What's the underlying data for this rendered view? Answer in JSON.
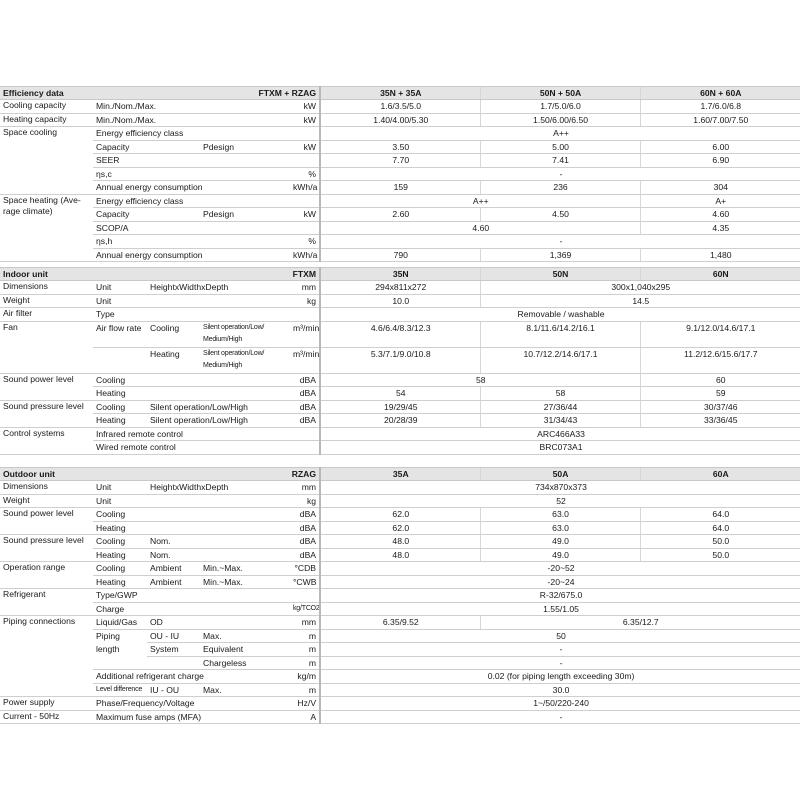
{
  "sections": [
    {
      "header": [
        "Efficiency data",
        "FTXM + RZAG",
        "35N + 35A",
        "50N + 50A",
        "60N + 60A"
      ],
      "rows": [
        {
          "group": {
            "t": "Cooling capacity"
          },
          "sub": [
            "Min./Nom./Max."
          ],
          "unit": "kW",
          "values": [
            "1.6/3.5/5.0",
            "1.7/5.0/6.0",
            "1.7/6.0/6.8"
          ]
        },
        {
          "group": {
            "t": "Heating capacity"
          },
          "sub": [
            "Min./Nom./Max."
          ],
          "unit": "kW",
          "values": [
            "1.40/4.00/5.30",
            "1.50/6.00/6.50",
            "1.60/7.00/7.50"
          ]
        },
        {
          "group": {
            "t": "Space cooling",
            "rs": 5
          },
          "sub": [
            "Energy efficiency class"
          ],
          "unit": "",
          "values": [
            {
              "v": "A++",
              "span": 3
            }
          ]
        },
        {
          "sub": [
            "Capacity",
            "",
            "Pdesign"
          ],
          "unit": "kW",
          "values": [
            "3.50",
            "5.00",
            "6.00"
          ]
        },
        {
          "sub": [
            "SEER"
          ],
          "unit": "",
          "values": [
            "7.70",
            "7.41",
            "6.90"
          ]
        },
        {
          "sub": [
            "ηs,c"
          ],
          "unit": "%",
          "values": [
            {
              "v": "-",
              "span": 3
            }
          ]
        },
        {
          "sub": [
            "Annual energy consumption"
          ],
          "unit": "kWh/a",
          "values": [
            "159",
            "236",
            "304"
          ]
        },
        {
          "group": {
            "t": "Space heating (Ave-rage climate)",
            "rs": 5
          },
          "sub": [
            "Energy efficiency class"
          ],
          "unit": "",
          "values": [
            {
              "v": "A++",
              "span": 2
            },
            "A+"
          ]
        },
        {
          "sub": [
            "Capacity",
            "",
            "Pdesign"
          ],
          "unit": "kW",
          "values": [
            "2.60",
            "4.50",
            "4.60"
          ]
        },
        {
          "sub": [
            "SCOP/A"
          ],
          "unit": "",
          "values": [
            {
              "v": "4.60",
              "span": 2
            },
            "4.35"
          ]
        },
        {
          "sub": [
            "ηs,h"
          ],
          "unit": "%",
          "values": [
            {
              "v": "-",
              "span": 3
            }
          ]
        },
        {
          "sub": [
            "Annual energy consumption"
          ],
          "unit": "kWh/a",
          "values": [
            "790",
            "1,369",
            "1,480"
          ]
        }
      ]
    },
    {
      "header": [
        "Indoor unit",
        "FTXM",
        "35N",
        "50N",
        "60N"
      ],
      "rows": [
        {
          "group": {
            "t": "Dimensions"
          },
          "sub": [
            "Unit",
            "HeightxWidthxDepth"
          ],
          "unit": "mm",
          "values": [
            "294x811x272",
            {
              "v": "300x1,040x295",
              "span": 2
            }
          ]
        },
        {
          "group": {
            "t": "Weight"
          },
          "sub": [
            "Unit"
          ],
          "unit": "kg",
          "values": [
            "10.0",
            {
              "v": "14.5",
              "span": 2
            }
          ]
        },
        {
          "group": {
            "t": "Air filter"
          },
          "sub": [
            "Type"
          ],
          "unit": "",
          "values": [
            {
              "v": "Removable / washable",
              "span": 3
            }
          ]
        },
        {
          "group": {
            "t": "Fan",
            "rs": 2
          },
          "tall": true,
          "sub": [
            "Air flow rate",
            "Cooling",
            {
              "t": "Silent operation/Low/ Medium/High",
              "fine_print": true
            }
          ],
          "unit": "m³/min",
          "values": [
            "4.6/6.4/8.3/12.3",
            "8.1/11.6/14.2/16.1",
            "9.1/12.0/14.6/17.1"
          ]
        },
        {
          "tall": true,
          "sub": [
            "",
            "Heating",
            {
              "t": "Silent operation/Low/ Medium/High",
              "fine_print": true
            }
          ],
          "unit": "m³/min",
          "values": [
            "5.3/7.1/9.0/10.8",
            "10.7/12.2/14.6/17.1",
            "11.2/12.6/15.6/17.7"
          ]
        },
        {
          "group": {
            "t": "Sound power level",
            "rs": 2
          },
          "sub": [
            "Cooling"
          ],
          "unit": "dBA",
          "values": [
            {
              "v": "58",
              "span": 2
            },
            "60"
          ]
        },
        {
          "sub": [
            "Heating"
          ],
          "unit": "dBA",
          "values": [
            "54",
            "58",
            "59"
          ]
        },
        {
          "group": {
            "t": "Sound pressure level",
            "rs": 2
          },
          "sub": [
            "Cooling",
            "Silent operation/Low/High"
          ],
          "unit": "dBA",
          "values": [
            "19/29/45",
            "27/36/44",
            "30/37/46"
          ]
        },
        {
          "sub": [
            "Heating",
            "Silent operation/Low/High"
          ],
          "unit": "dBA",
          "values": [
            "20/28/39",
            "31/34/43",
            "33/36/45"
          ]
        },
        {
          "group": {
            "t": "Control systems",
            "rs": 2
          },
          "sub": [
            "Infrared remote control"
          ],
          "unit": "",
          "values": [
            {
              "v": "ARC466A33",
              "span": 3
            }
          ]
        },
        {
          "sub": [
            "Wired remote control"
          ],
          "unit": "",
          "values": [
            {
              "v": "BRC073A1",
              "span": 3
            }
          ]
        }
      ]
    },
    {
      "header": [
        "Outdoor unit",
        "RZAG",
        "35A",
        "50A",
        "60A"
      ],
      "rows": [
        {
          "group": {
            "t": "Dimensions"
          },
          "sub": [
            "Unit",
            "HeightxWidthxDepth"
          ],
          "unit": "mm",
          "values": [
            {
              "v": "734x870x373",
              "span": 3
            }
          ]
        },
        {
          "group": {
            "t": "Weight"
          },
          "sub": [
            "Unit"
          ],
          "unit": "kg",
          "values": [
            {
              "v": "52",
              "span": 3
            }
          ]
        },
        {
          "group": {
            "t": "Sound power level",
            "rs": 2
          },
          "sub": [
            "Cooling"
          ],
          "unit": "dBA",
          "values": [
            "62.0",
            "63.0",
            "64.0"
          ]
        },
        {
          "sub": [
            "Heating"
          ],
          "unit": "dBA",
          "values": [
            "62.0",
            "63.0",
            "64.0"
          ]
        },
        {
          "group": {
            "t": "Sound pressure level",
            "rs": 2
          },
          "sub": [
            "Cooling",
            "Nom."
          ],
          "unit": "dBA",
          "values": [
            "48.0",
            "49.0",
            "50.0"
          ]
        },
        {
          "sub": [
            "Heating",
            "Nom."
          ],
          "unit": "dBA",
          "values": [
            "48.0",
            "49.0",
            "50.0"
          ]
        },
        {
          "group": {
            "t": "Operation range",
            "rs": 2
          },
          "sub": [
            "Cooling",
            "Ambient",
            "Min.~Max."
          ],
          "unit": "°CDB",
          "values": [
            {
              "v": "-20~52",
              "span": 3
            }
          ]
        },
        {
          "sub": [
            "Heating",
            "Ambient",
            "Min.~Max."
          ],
          "unit": "°CWB",
          "values": [
            {
              "v": "-20~24",
              "span": 3
            }
          ]
        },
        {
          "group": {
            "t": "Refrigerant",
            "rs": 2
          },
          "sub": [
            "Type/GWP"
          ],
          "unit": "",
          "values": [
            {
              "v": "R-32/675.0",
              "span": 3
            }
          ]
        },
        {
          "sub": [
            "Charge"
          ],
          "unit": {
            "t": "kg/TCO2Eq",
            "fine_print": true
          },
          "values": [
            {
              "v": "1.55/1.05",
              "span": 3
            }
          ]
        },
        {
          "group": {
            "t": "Piping connections",
            "rs": 6
          },
          "sub": [
            "Liquid/Gas",
            "OD"
          ],
          "unit": "mm",
          "values": [
            "6.35/9.52",
            {
              "v": "6.35/12.7",
              "span": 2
            }
          ]
        },
        {
          "sub": [
            {
              "t": "Piping length",
              "rs": 3
            },
            "OU - IU",
            "Max."
          ],
          "unit": "m",
          "values": [
            {
              "v": "50",
              "span": 3
            }
          ]
        },
        {
          "skip": 1,
          "sub": [
            "System",
            "Equivalent"
          ],
          "unit": "m",
          "values": [
            {
              "v": "-",
              "span": 3
            }
          ]
        },
        {
          "skip": 1,
          "sub": [
            "",
            "Chargeless"
          ],
          "unit": "m",
          "values": [
            {
              "v": "-",
              "span": 3
            }
          ]
        },
        {
          "sub": [
            "Additional refrigerant charge"
          ],
          "unit": "kg/m",
          "values": [
            {
              "v": "0.02 (for piping length exceeding 30m)",
              "span": 3
            }
          ]
        },
        {
          "sub": [
            {
              "t": "Level difference",
              "fine_print": true
            },
            "IU - OU",
            "Max."
          ],
          "unit": "m",
          "values": [
            {
              "v": "30.0",
              "span": 3
            }
          ]
        },
        {
          "group": {
            "t": "Power supply"
          },
          "sub": [
            "Phase/Frequency/Voltage"
          ],
          "unit": "Hz/V",
          "values": [
            {
              "v": "1~/50/220-240",
              "span": 3
            }
          ]
        },
        {
          "group": {
            "t": "Current - 50Hz"
          },
          "sub": [
            "Maximum fuse amps (MFA)"
          ],
          "unit": "A",
          "values": [
            {
              "v": "-",
              "span": 3
            }
          ]
        }
      ]
    }
  ]
}
